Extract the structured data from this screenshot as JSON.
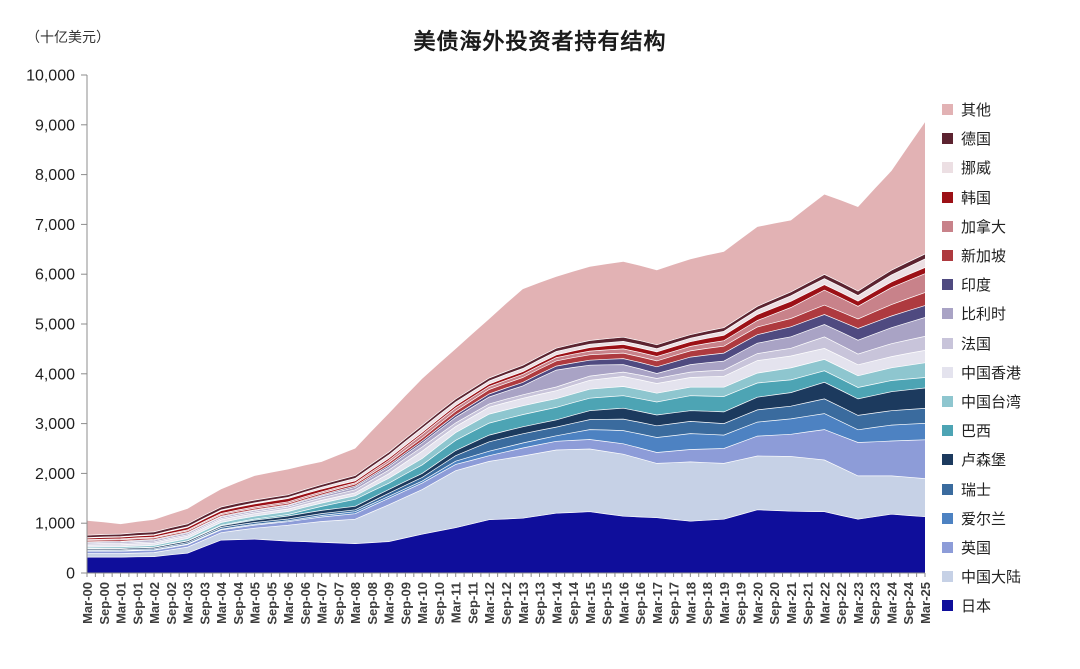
{
  "chart_data": {
    "type": "area",
    "stacked": true,
    "title": "美债海外投资者持有结构",
    "unit_label": "（十亿美元）",
    "xlabel": "",
    "ylabel": "",
    "ylim": [
      0,
      10000
    ],
    "y_ticks": [
      0,
      1000,
      2000,
      3000,
      4000,
      5000,
      6000,
      7000,
      8000,
      9000,
      10000
    ],
    "y_tick_labels": [
      "0",
      "1,000",
      "2,000",
      "3,000",
      "4,000",
      "5,000",
      "6,000",
      "7,000",
      "8,000",
      "9,000",
      "10,000"
    ],
    "grid": false,
    "legend_position": "right",
    "x": [
      "Mar-00",
      "Sep-00",
      "Mar-01",
      "Sep-01",
      "Mar-02",
      "Sep-02",
      "Mar-03",
      "Sep-03",
      "Mar-04",
      "Sep-04",
      "Mar-05",
      "Sep-05",
      "Mar-06",
      "Sep-06",
      "Mar-07",
      "Sep-07",
      "Mar-08",
      "Sep-08",
      "Mar-09",
      "Sep-09",
      "Mar-10",
      "Sep-10",
      "Mar-11",
      "Sep-11",
      "Mar-12",
      "Sep-12",
      "Mar-13",
      "Sep-13",
      "Mar-14",
      "Sep-14",
      "Mar-15",
      "Sep-15",
      "Mar-16",
      "Sep-16",
      "Mar-17",
      "Sep-17",
      "Mar-18",
      "Sep-18",
      "Mar-19",
      "Sep-19",
      "Mar-20",
      "Sep-20",
      "Mar-21",
      "Sep-21",
      "Mar-22",
      "Sep-22",
      "Mar-23",
      "Sep-23",
      "Mar-24",
      "Sep-24",
      "Mar-25"
    ],
    "series": [
      {
        "id": "japan",
        "name": "日本",
        "color": "#0f0e9b",
        "values": [
          320,
          320,
          320,
          325,
          330,
          365,
          400,
          530,
          660,
          670,
          680,
          660,
          640,
          628,
          615,
          602,
          590,
          610,
          630,
          705,
          780,
          845,
          910,
          990,
          1070,
          1085,
          1100,
          1150,
          1200,
          1215,
          1230,
          1185,
          1140,
          1125,
          1110,
          1075,
          1040,
          1060,
          1080,
          1175,
          1270,
          1255,
          1240,
          1235,
          1230,
          1155,
          1080,
          1130,
          1180,
          1155,
          1130
        ]
      },
      {
        "id": "china-mainland",
        "name": "中国大陆",
        "color": "#c6d1e6",
        "values": [
          70,
          70,
          70,
          75,
          80,
          100,
          120,
          135,
          150,
          185,
          220,
          270,
          320,
          370,
          420,
          455,
          490,
          615,
          740,
          818,
          895,
          1020,
          1145,
          1158,
          1170,
          1210,
          1250,
          1260,
          1270,
          1265,
          1260,
          1253,
          1245,
          1168,
          1090,
          1140,
          1190,
          1155,
          1120,
          1100,
          1080,
          1090,
          1100,
          1070,
          1040,
          955,
          870,
          820,
          770,
          768,
          765
        ]
      },
      {
        "id": "uk",
        "name": "英国",
        "color": "#8d9cd8",
        "values": [
          50,
          49,
          48,
          47,
          45,
          48,
          50,
          53,
          55,
          59,
          62,
          66,
          70,
          80,
          90,
          100,
          110,
          120,
          130,
          130,
          130,
          128,
          125,
          120,
          115,
          138,
          160,
          168,
          175,
          183,
          190,
          200,
          210,
          215,
          220,
          235,
          250,
          275,
          300,
          350,
          400,
          423,
          445,
          528,
          610,
          640,
          670,
          685,
          700,
          740,
          780
        ]
      },
      {
        "id": "ireland",
        "name": "爱尔兰",
        "color": "#4d82c2",
        "values": [
          10,
          10,
          10,
          11,
          12,
          13,
          13,
          14,
          15,
          17,
          18,
          19,
          20,
          25,
          30,
          35,
          40,
          40,
          40,
          40,
          40,
          53,
          65,
          78,
          90,
          95,
          100,
          105,
          110,
          155,
          200,
          233,
          265,
          283,
          300,
          310,
          320,
          295,
          270,
          275,
          280,
          295,
          310,
          315,
          320,
          288,
          255,
          288,
          320,
          325,
          330
        ]
      },
      {
        "id": "switzerland",
        "name": "瑞士",
        "color": "#3a6b9e",
        "values": [
          15,
          17,
          18,
          19,
          20,
          24,
          28,
          32,
          35,
          35,
          35,
          35,
          35,
          37,
          38,
          39,
          40,
          50,
          60,
          68,
          75,
          93,
          110,
          150,
          190,
          188,
          185,
          180,
          175,
          188,
          200,
          215,
          230,
          233,
          235,
          240,
          245,
          238,
          230,
          238,
          245,
          250,
          255,
          275,
          295,
          293,
          290,
          290,
          290,
          295,
          300
        ]
      },
      {
        "id": "luxembourg",
        "name": "卢森堡",
        "color": "#1c3a5e",
        "values": [
          25,
          26,
          26,
          27,
          28,
          29,
          29,
          30,
          30,
          38,
          45,
          53,
          60,
          63,
          65,
          68,
          70,
          73,
          75,
          78,
          80,
          93,
          105,
          120,
          135,
          138,
          140,
          143,
          145,
          163,
          180,
          200,
          220,
          219,
          218,
          217,
          215,
          225,
          235,
          245,
          255,
          264,
          273,
          304,
          335,
          333,
          330,
          355,
          380,
          395,
          410
        ]
      },
      {
        "id": "brazil",
        "name": "巴西",
        "color": "#4da4b4",
        "values": [
          0,
          1,
          2,
          3,
          4,
          6,
          8,
          12,
          15,
          19,
          22,
          26,
          30,
          55,
          80,
          110,
          140,
          134,
          127,
          149,
          170,
          188,
          205,
          223,
          240,
          243,
          245,
          248,
          250,
          250,
          250,
          250,
          250,
          255,
          260,
          280,
          300,
          305,
          310,
          298,
          285,
          270,
          255,
          243,
          230,
          230,
          230,
          228,
          225,
          218,
          210
        ]
      },
      {
        "id": "taiwan",
        "name": "中国台湾",
        "color": "#8ec6cf",
        "values": [
          30,
          32,
          33,
          34,
          35,
          40,
          45,
          50,
          55,
          57,
          58,
          59,
          60,
          63,
          65,
          68,
          70,
          85,
          100,
          115,
          130,
          143,
          155,
          168,
          180,
          179,
          178,
          177,
          175,
          178,
          180,
          183,
          185,
          182,
          178,
          174,
          170,
          178,
          185,
          193,
          200,
          220,
          240,
          235,
          230,
          233,
          235,
          245,
          255,
          275,
          295
        ]
      },
      {
        "id": "hong-kong",
        "name": "中国香港",
        "color": "#e4e3ee",
        "values": [
          40,
          41,
          42,
          44,
          45,
          47,
          48,
          49,
          50,
          50,
          50,
          50,
          50,
          53,
          55,
          58,
          60,
          75,
          90,
          118,
          145,
          133,
          120,
          130,
          140,
          145,
          150,
          155,
          160,
          170,
          180,
          190,
          200,
          198,
          195,
          195,
          195,
          208,
          220,
          235,
          250,
          245,
          240,
          230,
          220,
          220,
          220,
          223,
          225,
          238,
          250
        ]
      },
      {
        "id": "france",
        "name": "法国",
        "color": "#c8c4da",
        "values": [
          25,
          26,
          26,
          27,
          28,
          29,
          29,
          30,
          30,
          33,
          35,
          38,
          40,
          45,
          50,
          55,
          60,
          67,
          73,
          79,
          85,
          80,
          75,
          70,
          65,
          68,
          70,
          73,
          75,
          79,
          83,
          87,
          90,
          95,
          100,
          105,
          110,
          118,
          125,
          133,
          140,
          148,
          155,
          193,
          230,
          223,
          215,
          238,
          260,
          270,
          280
        ]
      },
      {
        "id": "belgium",
        "name": "比利时",
        "color": "#a9a3c5",
        "values": [
          25,
          26,
          27,
          29,
          30,
          30,
          30,
          30,
          30,
          30,
          30,
          30,
          30,
          35,
          40,
          45,
          50,
          58,
          65,
          73,
          80,
          95,
          110,
          125,
          140,
          160,
          180,
          260,
          340,
          280,
          220,
          185,
          150,
          125,
          100,
          125,
          150,
          165,
          180,
          195,
          210,
          220,
          230,
          240,
          250,
          265,
          280,
          300,
          320,
          350,
          380
        ]
      },
      {
        "id": "india",
        "name": "印度",
        "color": "#4f4a80",
        "values": [
          15,
          15,
          15,
          15,
          15,
          15,
          15,
          15,
          15,
          15,
          15,
          15,
          15,
          18,
          20,
          23,
          25,
          29,
          32,
          36,
          40,
          45,
          50,
          55,
          60,
          65,
          70,
          75,
          80,
          90,
          100,
          110,
          120,
          128,
          135,
          143,
          150,
          155,
          160,
          165,
          170,
          185,
          200,
          200,
          200,
          218,
          235,
          235,
          235,
          238,
          240
        ]
      },
      {
        "id": "singapore",
        "name": "新加坡",
        "color": "#ae3a3f",
        "values": [
          30,
          30,
          30,
          30,
          30,
          30,
          30,
          30,
          30,
          30,
          30,
          30,
          30,
          33,
          35,
          38,
          40,
          45,
          50,
          55,
          60,
          68,
          75,
          83,
          90,
          94,
          98,
          102,
          105,
          107,
          108,
          109,
          110,
          114,
          118,
          122,
          125,
          133,
          140,
          148,
          155,
          162,
          168,
          179,
          190,
          190,
          190,
          210,
          230,
          245,
          260
        ]
      },
      {
        "id": "canada",
        "name": "加拿大",
        "color": "#c8828a",
        "values": [
          15,
          16,
          17,
          18,
          18,
          20,
          22,
          24,
          25,
          27,
          28,
          29,
          30,
          29,
          28,
          27,
          25,
          38,
          50,
          63,
          75,
          72,
          68,
          64,
          60,
          62,
          63,
          64,
          65,
          70,
          75,
          80,
          85,
          87,
          88,
          89,
          90,
          100,
          110,
          120,
          130,
          175,
          220,
          260,
          300,
          278,
          255,
          298,
          340,
          360,
          380
        ]
      },
      {
        "id": "south-korea",
        "name": "韩国",
        "color": "#9c1016",
        "values": [
          30,
          33,
          35,
          38,
          40,
          44,
          48,
          52,
          55,
          58,
          60,
          63,
          65,
          59,
          53,
          47,
          40,
          40,
          40,
          40,
          40,
          43,
          45,
          48,
          50,
          52,
          53,
          54,
          55,
          64,
          73,
          82,
          90,
          92,
          93,
          94,
          95,
          102,
          108,
          114,
          120,
          123,
          125,
          118,
          110,
          108,
          105,
          110,
          115,
          120,
          125
        ]
      },
      {
        "id": "norway",
        "name": "挪威",
        "color": "#ecdfe3",
        "values": [
          10,
          11,
          11,
          12,
          12,
          13,
          14,
          15,
          15,
          18,
          20,
          23,
          25,
          32,
          38,
          44,
          50,
          58,
          65,
          73,
          80,
          75,
          70,
          65,
          60,
          63,
          65,
          68,
          70,
          68,
          65,
          63,
          60,
          63,
          65,
          68,
          70,
          75,
          80,
          85,
          90,
          100,
          110,
          115,
          120,
          115,
          110,
          125,
          140,
          155,
          170
        ]
      },
      {
        "id": "germany",
        "name": "德国",
        "color": "#5c2330",
        "values": [
          50,
          51,
          52,
          53,
          54,
          56,
          57,
          59,
          60,
          58,
          55,
          53,
          50,
          52,
          53,
          54,
          55,
          57,
          58,
          59,
          60,
          60,
          60,
          60,
          60,
          62,
          63,
          64,
          65,
          70,
          75,
          80,
          85,
          82,
          78,
          74,
          70,
          72,
          73,
          74,
          75,
          77,
          78,
          82,
          85,
          88,
          90,
          93,
          95,
          98,
          100
        ]
      },
      {
        "id": "other",
        "name": "其他",
        "color": "#e2b2b4",
        "values": [
          290,
          245,
          200,
          222,
          244,
          274,
          304,
          330,
          355,
          421,
          487,
          499,
          510,
          483,
          455,
          500,
          545,
          660,
          775,
          855,
          935,
          971,
          1007,
          1096,
          1185,
          1358,
          1530,
          1483,
          1435,
          1458,
          1481,
          1498,
          1515,
          1506,
          1497,
          1506,
          1515,
          1520,
          1524,
          1560,
          1595,
          1516,
          1436,
          1521,
          1605,
          1648,
          1690,
          1843,
          1995,
          2320,
          2645
        ]
      }
    ]
  }
}
